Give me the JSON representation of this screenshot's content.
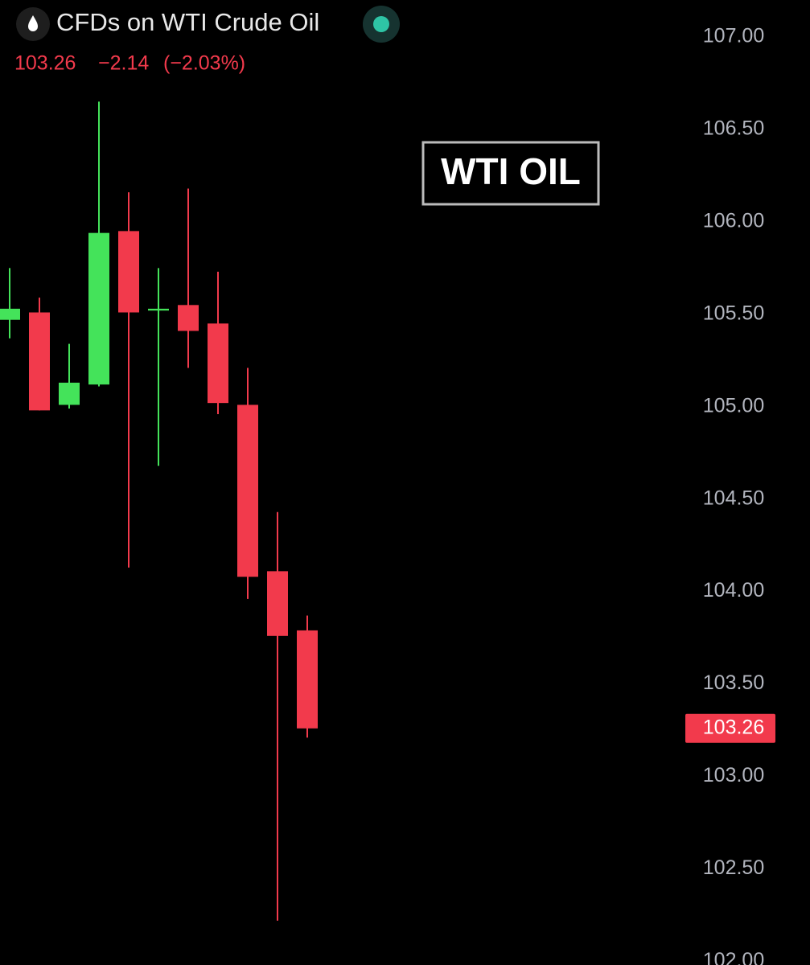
{
  "chart_data": {
    "type": "candlestick",
    "title": "CFDs on WTI Crude Oil",
    "last_price": 103.26,
    "change": "−2.14",
    "change_percent": "(−2.03%)",
    "annotation": "WTI OIL",
    "open": [
      105.47,
      105.51,
      105.01,
      105.12,
      105.95,
      105.52,
      105.55,
      105.45,
      105.01,
      104.11,
      103.79
    ],
    "high": [
      105.75,
      105.59,
      105.34,
      106.65,
      106.16,
      105.75,
      106.18,
      105.73,
      105.21,
      104.43,
      103.87
    ],
    "low": [
      105.37,
      104.98,
      104.99,
      105.11,
      104.13,
      104.68,
      105.21,
      104.96,
      103.96,
      102.22,
      103.21
    ],
    "close": [
      105.53,
      104.98,
      105.13,
      105.94,
      105.51,
      105.53,
      105.41,
      105.02,
      104.08,
      103.76,
      103.26
    ],
    "up_color": "#44e35a",
    "down_color": "#f23a4c",
    "ylim": [
      101.98,
      107.2
    ],
    "yticks": [
      {
        "value": 107,
        "label": "107.00"
      },
      {
        "value": 106.5,
        "label": "106.50"
      },
      {
        "value": 106,
        "label": "106.00"
      },
      {
        "value": 105.5,
        "label": "105.50"
      },
      {
        "value": 105,
        "label": "105.00"
      },
      {
        "value": 104.5,
        "label": "104.50"
      },
      {
        "value": 104,
        "label": "104.00"
      },
      {
        "value": 103.5,
        "label": "103.50"
      },
      {
        "value": 103,
        "label": "103.00"
      },
      {
        "value": 102.5,
        "label": "102.50"
      },
      {
        "value": 102,
        "label": "102.00"
      }
    ]
  }
}
